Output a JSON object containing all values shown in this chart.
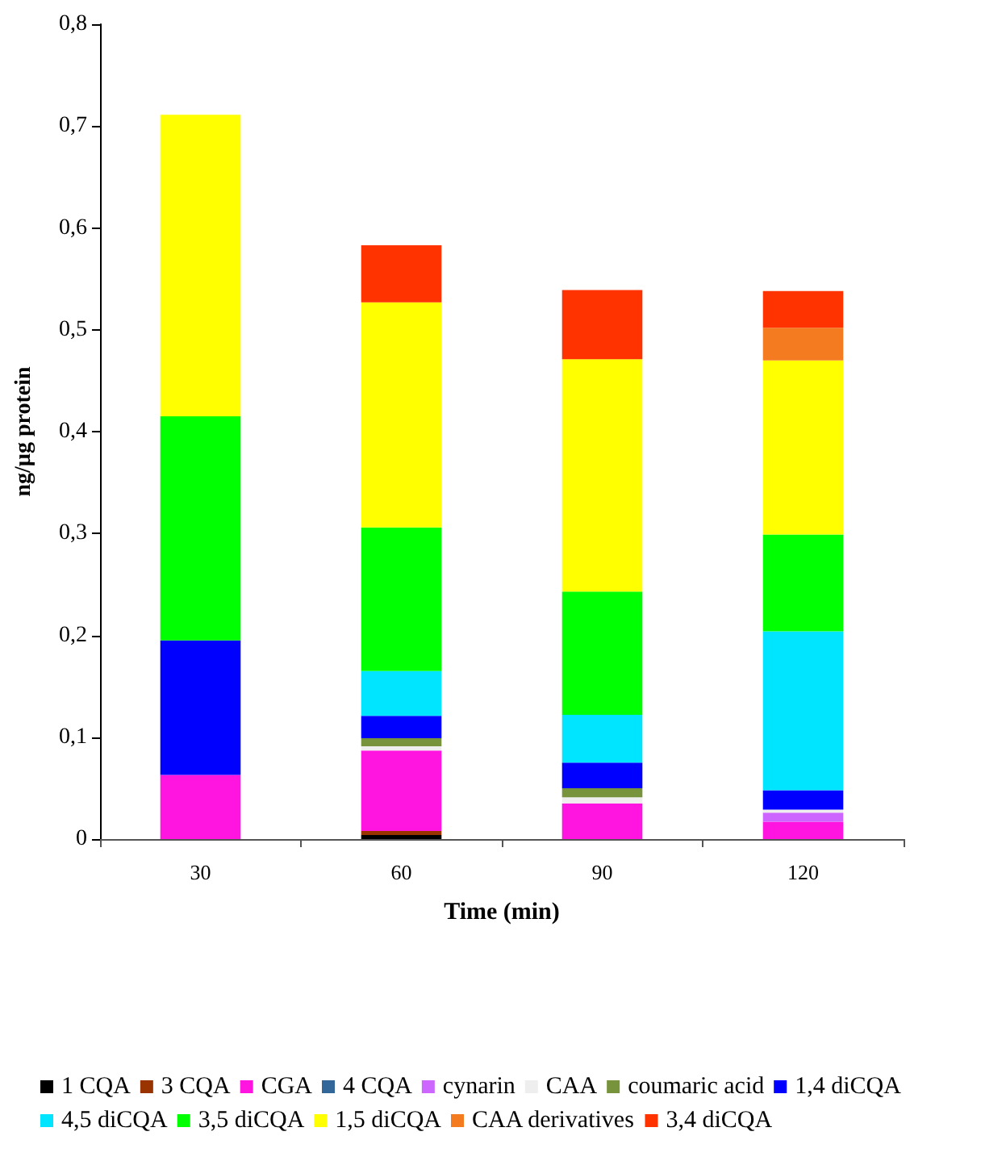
{
  "chart_data": {
    "type": "bar",
    "stacked": true,
    "xlabel": "Time (min)",
    "ylabel": "ng/µg protein",
    "categories": [
      "30",
      "60",
      "90",
      "120"
    ],
    "ylim": [
      0,
      0.8
    ],
    "yticks": [
      0,
      {
        "value": 0.1,
        "label": "0,1"
      },
      {
        "value": 0.2,
        "label": "0,2"
      },
      {
        "value": 0.3,
        "label": "0,3"
      },
      {
        "value": 0.4,
        "label": "0,4"
      },
      {
        "value": 0.5,
        "label": "0,5"
      },
      {
        "value": 0.6,
        "label": "0,6"
      },
      {
        "value": 0.7,
        "label": "0,7"
      },
      {
        "value": 0.8,
        "label": "0,8"
      }
    ],
    "grid": false,
    "legend": "bottom",
    "series": [
      {
        "name": "1 CQA",
        "color": "#000000",
        "values": [
          null,
          0.004,
          null,
          null
        ]
      },
      {
        "name": "3 CQA",
        "color": "#993300",
        "values": [
          null,
          0.004,
          null,
          null
        ]
      },
      {
        "name": "CGA",
        "color": "#ff14e0",
        "values": [
          0.063,
          0.079,
          0.035,
          0.017
        ]
      },
      {
        "name": "4 CQA",
        "color": "#336699",
        "values": [
          null,
          null,
          null,
          null
        ]
      },
      {
        "name": "cynarin",
        "color": "#cc66ff",
        "values": [
          null,
          null,
          null,
          0.009
        ]
      },
      {
        "name": "CAA",
        "color": "#eeeeee",
        "values": [
          null,
          0.004,
          0.006,
          0.003
        ]
      },
      {
        "name": "coumaric acid",
        "color": "#77933c",
        "values": [
          null,
          0.008,
          0.009,
          null
        ]
      },
      {
        "name": "1,4 diCQA",
        "color": "#0000ff",
        "values": [
          0.132,
          0.022,
          0.025,
          0.019
        ]
      },
      {
        "name": "4,5 diCQA",
        "color": "#00e5ff",
        "values": [
          null,
          0.044,
          0.047,
          0.156
        ]
      },
      {
        "name": "3,5 diCQA",
        "color": "#00ff00",
        "values": [
          0.22,
          0.141,
          0.121,
          0.095
        ]
      },
      {
        "name": "1,5 diCQA",
        "color": "#ffff00",
        "values": [
          0.296,
          0.221,
          0.228,
          0.171
        ]
      },
      {
        "name": "CAA derivatives",
        "color": "#f47b20",
        "values": [
          null,
          null,
          null,
          0.032
        ]
      },
      {
        "name": "3,4 diCQA",
        "color": "#ff3300",
        "values": [
          null,
          0.056,
          0.068,
          0.036
        ]
      }
    ]
  }
}
